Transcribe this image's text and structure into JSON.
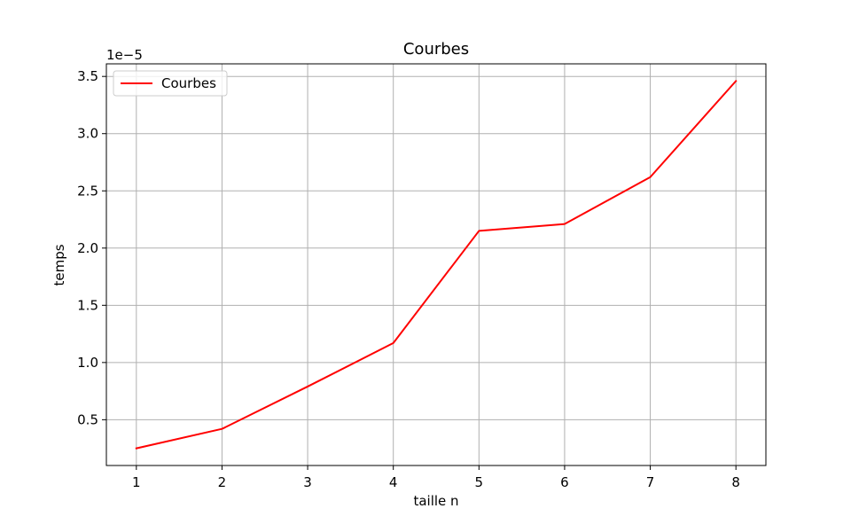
{
  "chart_data": {
    "type": "line",
    "title": "Courbes",
    "xlabel": "taille n",
    "ylabel": "temps",
    "y_offset_label": "1e−5",
    "x": [
      1,
      2,
      3,
      4,
      5,
      6,
      7,
      8
    ],
    "series": [
      {
        "name": "Courbes",
        "color": "#ff0000",
        "values": [
          2.5e-06,
          4.2e-06,
          7.9e-06,
          1.17e-05,
          2.15e-05,
          2.21e-05,
          2.62e-05,
          3.46e-05
        ]
      }
    ],
    "xticks": [
      1,
      2,
      3,
      4,
      5,
      6,
      7,
      8
    ],
    "xtick_labels": [
      "1",
      "2",
      "3",
      "4",
      "5",
      "6",
      "7",
      "8"
    ],
    "yticks": [
      5e-06,
      1e-05,
      1.5e-05,
      2e-05,
      2.5e-05,
      3e-05,
      3.5e-05
    ],
    "ytick_labels": [
      "0.5",
      "1.0",
      "1.5",
      "2.0",
      "2.5",
      "3.0",
      "3.5"
    ],
    "xlim": [
      0.65,
      8.35
    ],
    "ylim": [
      1e-06,
      3.61e-05
    ],
    "grid": true,
    "legend_position": "top-left",
    "grid_color": "#b0b0b0"
  }
}
